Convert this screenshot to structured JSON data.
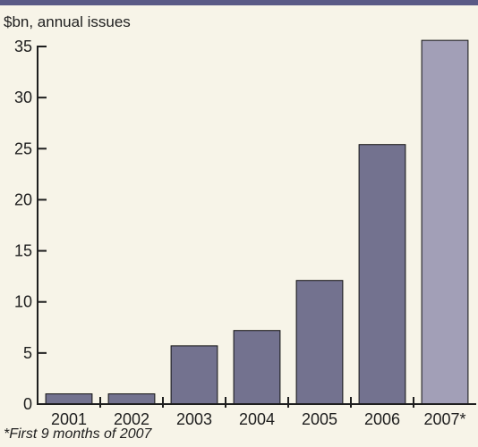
{
  "chart_data": {
    "type": "bar",
    "ylabel": "$bn, annual issues",
    "footnote": "*First 9 months of 2007",
    "categories": [
      "2001",
      "2002",
      "2003",
      "2004",
      "2005",
      "2006",
      "2007*"
    ],
    "values": [
      1.0,
      1.0,
      5.7,
      7.2,
      12.1,
      25.4,
      35.6
    ],
    "ylim": [
      0,
      35
    ],
    "yticks": [
      0,
      5,
      10,
      15,
      20,
      25,
      30,
      35
    ],
    "grid": false,
    "colors": {
      "bar": "#73728f",
      "highlight_bar": "#a29fb7",
      "bar_outline": "#111111",
      "top_rule": "#5a5a86",
      "background": "#f7f4e8"
    }
  }
}
